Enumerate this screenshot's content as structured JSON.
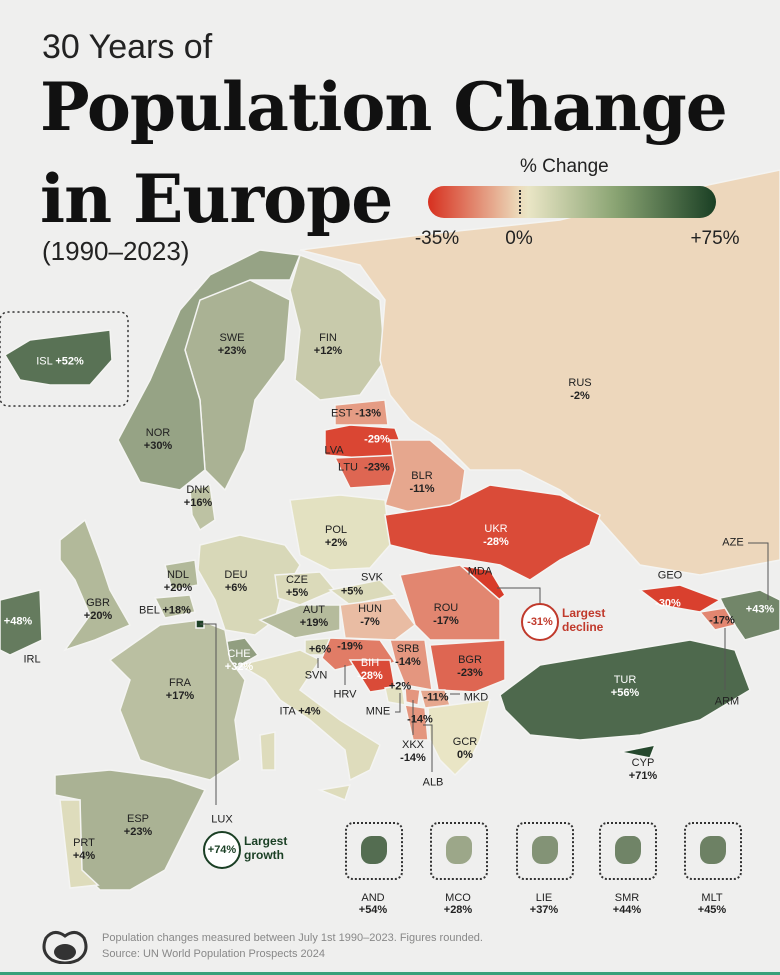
{
  "title": {
    "line1": "30 Years of",
    "line2": "Population Change",
    "line3": "in Europe",
    "period": "(1990–2023)"
  },
  "legend": {
    "title": "% Change",
    "min_label": "-35%",
    "mid_label": "0%",
    "max_label": "+75%",
    "colors": {
      "min": "#d7301f",
      "mid": "#e9e5c5",
      "max": "#1a3f24"
    }
  },
  "countries": [
    {
      "code": "ISL",
      "value": "+52%",
      "num": 52
    },
    {
      "code": "SWE",
      "value": "+23%",
      "num": 23
    },
    {
      "code": "FIN",
      "value": "+12%",
      "num": 12
    },
    {
      "code": "NOR",
      "value": "+30%",
      "num": 30
    },
    {
      "code": "RUS",
      "value": "-2%",
      "num": -2
    },
    {
      "code": "EST",
      "value": "-13%",
      "num": -13
    },
    {
      "code": "LVA",
      "value": "-29%",
      "num": -29
    },
    {
      "code": "LTU",
      "value": "-23%",
      "num": -23
    },
    {
      "code": "BLR",
      "value": "-11%",
      "num": -11
    },
    {
      "code": "DNK",
      "value": "+16%",
      "num": 16
    },
    {
      "code": "POL",
      "value": "+2%",
      "num": 2
    },
    {
      "code": "UKR",
      "value": "-28%",
      "num": -28
    },
    {
      "code": "NDL",
      "value": "+20%",
      "num": 20
    },
    {
      "code": "DEU",
      "value": "+6%",
      "num": 6
    },
    {
      "code": "CZE",
      "value": "+5%",
      "num": 5
    },
    {
      "code": "SVK",
      "value": "+5%",
      "num": 5
    },
    {
      "code": "MDA",
      "value": "-31%",
      "num": -31
    },
    {
      "code": "GBR",
      "value": "+20%",
      "num": 20
    },
    {
      "code": "BEL",
      "value": "+18%",
      "num": 18
    },
    {
      "code": "HUN",
      "value": "-7%",
      "num": -7
    },
    {
      "code": "ROU",
      "value": "-17%",
      "num": -17
    },
    {
      "code": "AUT",
      "value": "+19%",
      "num": 19
    },
    {
      "code": "CHE",
      "value": "+32%",
      "num": 32
    },
    {
      "code": "FRA",
      "value": "+17%",
      "num": 17
    },
    {
      "code": "IRL",
      "value": "+48%",
      "num": 48
    },
    {
      "code": "GEO",
      "value": "-30%",
      "num": -30
    },
    {
      "code": "AZE",
      "value": "+43%",
      "num": 43
    },
    {
      "code": "ARM",
      "value": "-17%",
      "num": -17
    },
    {
      "code": "SVN",
      "value": "+6%",
      "num": 6
    },
    {
      "code": "HRV",
      "value": "-19%",
      "num": -19
    },
    {
      "code": "BIH",
      "value": "-28%",
      "num": -28
    },
    {
      "code": "SRB",
      "value": "-14%",
      "num": -14
    },
    {
      "code": "BGR",
      "value": "-23%",
      "num": -23
    },
    {
      "code": "MNE",
      "value": "+2%",
      "num": 2
    },
    {
      "code": "MKD",
      "value": "-11%",
      "num": -11
    },
    {
      "code": "ALB",
      "value": "-14%",
      "num": -14
    },
    {
      "code": "XKX",
      "value": "-14%",
      "num": -14
    },
    {
      "code": "GCR",
      "value": "0%",
      "num": 0
    },
    {
      "code": "ITA",
      "value": "+4%",
      "num": 4
    },
    {
      "code": "TUR",
      "value": "+56%",
      "num": 56
    },
    {
      "code": "CYP",
      "value": "+71%",
      "num": 71
    },
    {
      "code": "ESP",
      "value": "+23%",
      "num": 23
    },
    {
      "code": "PRT",
      "value": "+4%",
      "num": 4
    },
    {
      "code": "LUX",
      "value": "+74%",
      "num": 74
    }
  ],
  "callouts": {
    "decline": {
      "value": "-31%",
      "text1": "Largest",
      "text2": "decline"
    },
    "growth": {
      "value": "+74%",
      "text1": "Largest",
      "text2": "growth"
    }
  },
  "microstates": [
    {
      "code": "AND",
      "value": "+54%",
      "num": 54
    },
    {
      "code": "MCO",
      "value": "+28%",
      "num": 28
    },
    {
      "code": "LIE",
      "value": "+37%",
      "num": 37
    },
    {
      "code": "SMR",
      "value": "+44%",
      "num": 44
    },
    {
      "code": "MLT",
      "value": "+45%",
      "num": 45
    }
  ],
  "footer": {
    "note": "Population changes measured between July 1st 1990–2023. Figures rounded.",
    "source": "Source: UN World Population Prospects 2024"
  }
}
